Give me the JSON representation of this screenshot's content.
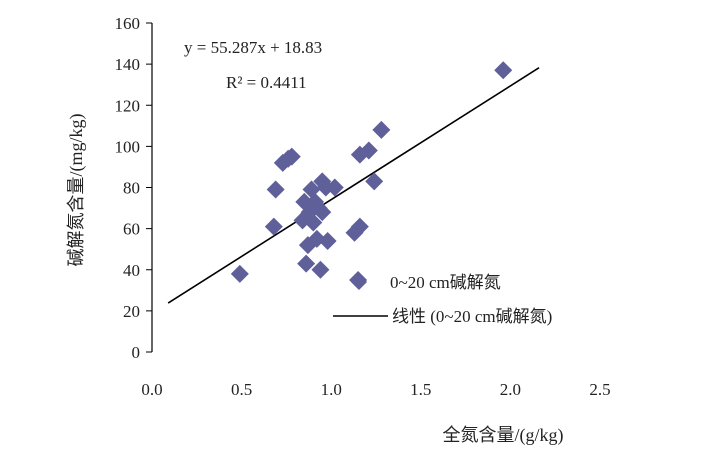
{
  "chart_data": {
    "type": "scatter",
    "title": "",
    "xlabel": "全氮含量/(g/kg)",
    "ylabel": "碱解氮含量/(mg/kg)",
    "xlim": [
      0,
      2.5
    ],
    "ylim": [
      0,
      160
    ],
    "xticks": [
      "0.0",
      "0.5",
      "1.0",
      "1.5",
      "2.0",
      "2.5"
    ],
    "yticks": [
      "0",
      "20",
      "40",
      "60",
      "80",
      "100",
      "120",
      "140",
      "160"
    ],
    "grid": false,
    "legend_position": "bottom-right",
    "series": [
      {
        "name": "0~20 cm碱解氮",
        "marker": "diamond",
        "color": "#5f5f9a",
        "points": [
          [
            0.49,
            38
          ],
          [
            0.68,
            61
          ],
          [
            0.69,
            79
          ],
          [
            0.73,
            92
          ],
          [
            0.76,
            94
          ],
          [
            0.78,
            95
          ],
          [
            0.84,
            64
          ],
          [
            0.85,
            73
          ],
          [
            0.86,
            43
          ],
          [
            0.87,
            52
          ],
          [
            0.88,
            68
          ],
          [
            0.89,
            79
          ],
          [
            0.9,
            63
          ],
          [
            0.91,
            73
          ],
          [
            0.92,
            55
          ],
          [
            0.93,
            70
          ],
          [
            0.94,
            40
          ],
          [
            0.95,
            68
          ],
          [
            0.95,
            83
          ],
          [
            0.97,
            80
          ],
          [
            0.98,
            54
          ],
          [
            1.02,
            80
          ],
          [
            1.13,
            58
          ],
          [
            1.16,
            61
          ],
          [
            1.16,
            96
          ],
          [
            1.15,
            35
          ],
          [
            1.21,
            98
          ],
          [
            1.24,
            83
          ],
          [
            1.28,
            108
          ],
          [
            1.96,
            137
          ]
        ]
      },
      {
        "name": "线性 (0~20 cm碱解氮)",
        "type": "trendline",
        "color": "#000000",
        "x_range": [
          0.09,
          2.16
        ],
        "slope": 55.287,
        "intercept": 18.83
      }
    ],
    "equation": "y = 55.287x + 18.83",
    "r_squared": "R² = 0.4411"
  }
}
